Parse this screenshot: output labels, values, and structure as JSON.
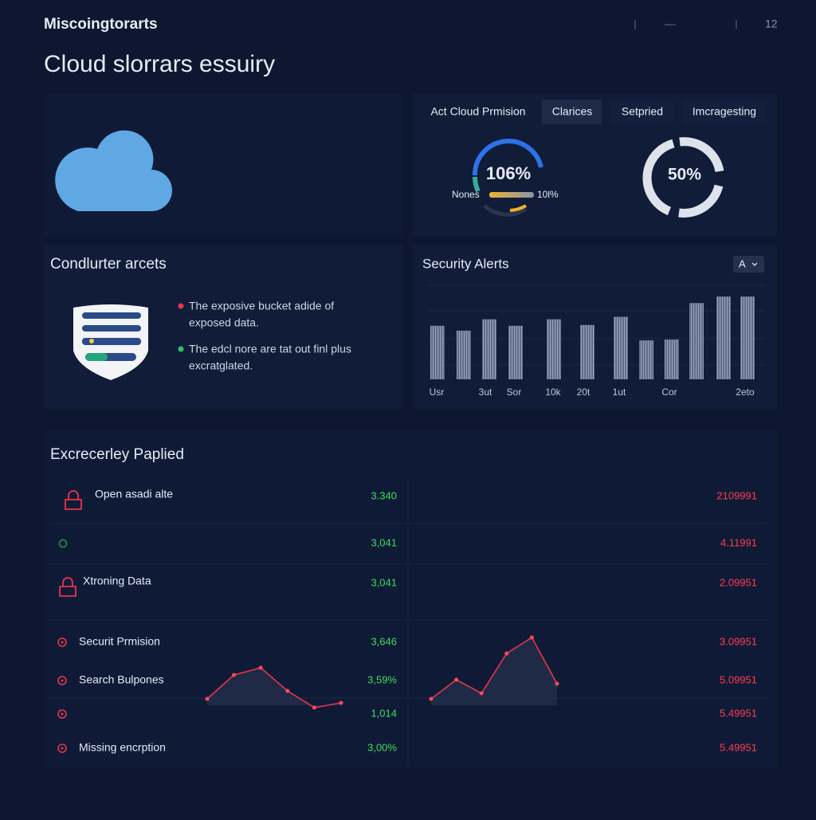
{
  "header": {
    "brand": "Miscoingtorarts",
    "counter": "12",
    "title": "Cloud slorrars essuiry"
  },
  "overview": {
    "tabs": [
      "Act Cloud Prmision",
      "Clarices",
      "Setpried",
      "Imcragesting"
    ],
    "gauge_left": {
      "value": "106%",
      "left_label": "Nones",
      "right_label": "10l%"
    },
    "gauge_right": {
      "value": "50%"
    }
  },
  "findings": {
    "title": "Condlurter arcets",
    "bullets": [
      [
        "The exposive bucket adide of",
        "exposed data."
      ],
      [
        "The edcl nore are tat out finl plus",
        "excratglated."
      ]
    ]
  },
  "security_alerts": {
    "title": "Security Alerts",
    "dropdown": "A",
    "bars": [
      66,
      60,
      74,
      66,
      74,
      67,
      77,
      48,
      49,
      94,
      102,
      102
    ],
    "ylim": [
      0,
      110
    ],
    "labels": [
      "Usr",
      "3ut",
      "Sor",
      "10k",
      "20t",
      "1ut",
      "Cor",
      "2eto"
    ]
  },
  "table": {
    "title": "Excrecerley Paplied",
    "rows": [
      {
        "label": "Open asadi alte",
        "green": "3.340",
        "red": "2109991"
      },
      {
        "green": "3,041",
        "red": "4.11991"
      },
      {
        "label": "Xtroning Data",
        "green": "3,041",
        "red": "2.09951"
      },
      {
        "label": "Securit Prmision",
        "green": "3,646",
        "red": "3.09951"
      },
      {
        "label": "Search Bulpones",
        "green": "3,59%",
        "red": "5.09951"
      },
      {
        "green": "1,014",
        "red": "5.49951"
      },
      {
        "label": "Missing encrption",
        "green": "3,00%",
        "red": "5.49951"
      }
    ],
    "sparklines": [
      [
        23,
        53,
        62,
        33,
        12,
        18
      ],
      [
        23,
        47,
        30,
        80,
        100,
        42
      ]
    ]
  }
}
